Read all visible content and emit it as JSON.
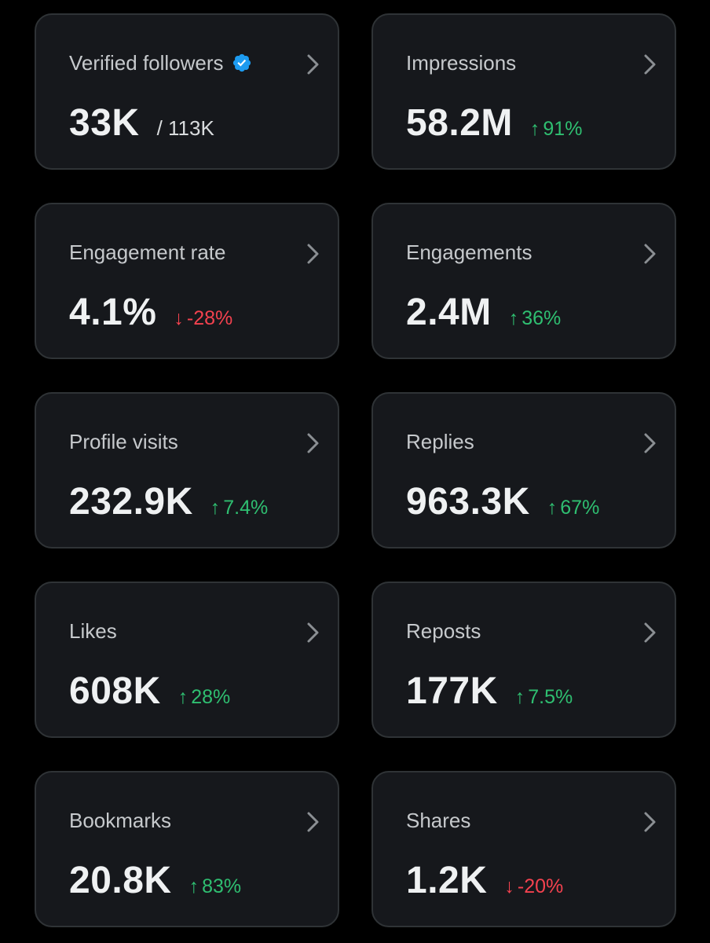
{
  "colors": {
    "background": "#000000",
    "card": "#16181c",
    "card_border": "#2f3336",
    "up": "#2fbf71",
    "down": "#f4424f",
    "verified": "#1d9bf0"
  },
  "cards": [
    {
      "title": "Verified followers",
      "value": "33K",
      "total": "/ 113K",
      "icon": "verified-badge-icon"
    },
    {
      "title": "Impressions",
      "value": "58.2M",
      "arrow": "↑",
      "change": "91%",
      "trend": "up"
    },
    {
      "title": "Engagement rate",
      "value": "4.1%",
      "arrow": "↓",
      "change": "-28%",
      "trend": "down"
    },
    {
      "title": "Engagements",
      "value": "2.4M",
      "arrow": "↑",
      "change": "36%",
      "trend": "up"
    },
    {
      "title": "Profile visits",
      "value": "232.9K",
      "arrow": "↑",
      "change": "7.4%",
      "trend": "up"
    },
    {
      "title": "Replies",
      "value": "963.3K",
      "arrow": "↑",
      "change": "67%",
      "trend": "up"
    },
    {
      "title": "Likes",
      "value": "608K",
      "arrow": "↑",
      "change": "28%",
      "trend": "up"
    },
    {
      "title": "Reposts",
      "value": "177K",
      "arrow": "↑",
      "change": "7.5%",
      "trend": "up"
    },
    {
      "title": "Bookmarks",
      "value": "20.8K",
      "arrow": "↑",
      "change": "83%",
      "trend": "up"
    },
    {
      "title": "Shares",
      "value": "1.2K",
      "arrow": "↓",
      "change": "-20%",
      "trend": "down"
    }
  ]
}
